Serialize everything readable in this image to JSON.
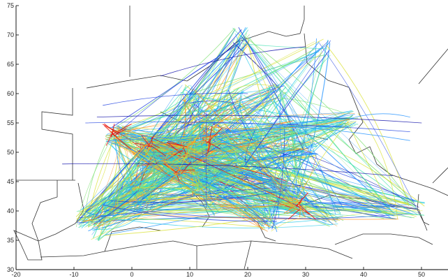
{
  "chart_data": {
    "type": "map-trajectories",
    "title": "",
    "xlabel": "",
    "ylabel": "",
    "xlim": [
      -20,
      55
    ],
    "ylim": [
      30,
      75
    ],
    "x_ticks": [
      "-20",
      "-10",
      "0",
      "10",
      "20",
      "30",
      "40",
      "50"
    ],
    "y_ticks": [
      "30",
      "35",
      "40",
      "45",
      "50",
      "55",
      "60",
      "65",
      "70",
      "75"
    ],
    "colormap": [
      "#0a0aa8",
      "#1d3fe0",
      "#1e90ff",
      "#22c8e8",
      "#40e0b0",
      "#7ee070",
      "#d8e030",
      "#ff9020",
      "#e81010"
    ],
    "hubs": [
      {
        "lon": 3,
        "lat": 51,
        "weight": 1.0
      },
      {
        "lon": 9,
        "lat": 50.5,
        "weight": 0.9
      },
      {
        "lon": -3,
        "lat": 53,
        "weight": 0.8
      },
      {
        "lon": 14,
        "lat": 52,
        "weight": 0.7
      },
      {
        "lon": 7,
        "lat": 47,
        "weight": 0.7
      },
      {
        "lon": 2,
        "lat": 48.8,
        "weight": 0.7
      },
      {
        "lon": 12,
        "lat": 44,
        "weight": 0.6
      },
      {
        "lon": 29,
        "lat": 41,
        "weight": 0.6
      },
      {
        "lon": -4,
        "lat": 40.4,
        "weight": 0.5
      },
      {
        "lon": 19,
        "lat": 47.5,
        "weight": 0.5
      },
      {
        "lon": 24,
        "lat": 38,
        "weight": 0.4
      },
      {
        "lon": 13,
        "lat": 55.6,
        "weight": 0.4
      },
      {
        "lon": 0,
        "lat": 44,
        "weight": 0.45
      },
      {
        "lon": 10,
        "lat": 59.9,
        "weight": 0.3
      },
      {
        "lon": 18,
        "lat": 59.3,
        "weight": 0.35
      },
      {
        "lon": 25,
        "lat": 60.2,
        "weight": 0.3
      },
      {
        "lon": 37.6,
        "lat": 55.7,
        "weight": 0.35
      },
      {
        "lon": 30.5,
        "lat": 50.4,
        "weight": 0.3
      },
      {
        "lon": 21,
        "lat": 52.2,
        "weight": 0.35
      },
      {
        "lon": 26,
        "lat": 44.4,
        "weight": 0.3
      },
      {
        "lon": -8,
        "lat": 38.7,
        "weight": 0.35
      },
      {
        "lon": 2,
        "lat": 41.4,
        "weight": 0.4
      },
      {
        "lon": 14.3,
        "lat": 40.8,
        "weight": 0.3
      },
      {
        "lon": -6,
        "lat": 36.5,
        "weight": 0.25
      },
      {
        "lon": 35,
        "lat": 39,
        "weight": 0.3
      },
      {
        "lon": 49,
        "lat": 40.4,
        "weight": 0.2
      },
      {
        "lon": 44.5,
        "lat": 40.2,
        "weight": 0.2
      },
      {
        "lon": 19,
        "lat": 69.7,
        "weight": 0.2
      },
      {
        "lon": 33,
        "lat": 68,
        "weight": 0.15
      },
      {
        "lon": 27,
        "lat": 53.9,
        "weight": 0.25
      }
    ]
  }
}
